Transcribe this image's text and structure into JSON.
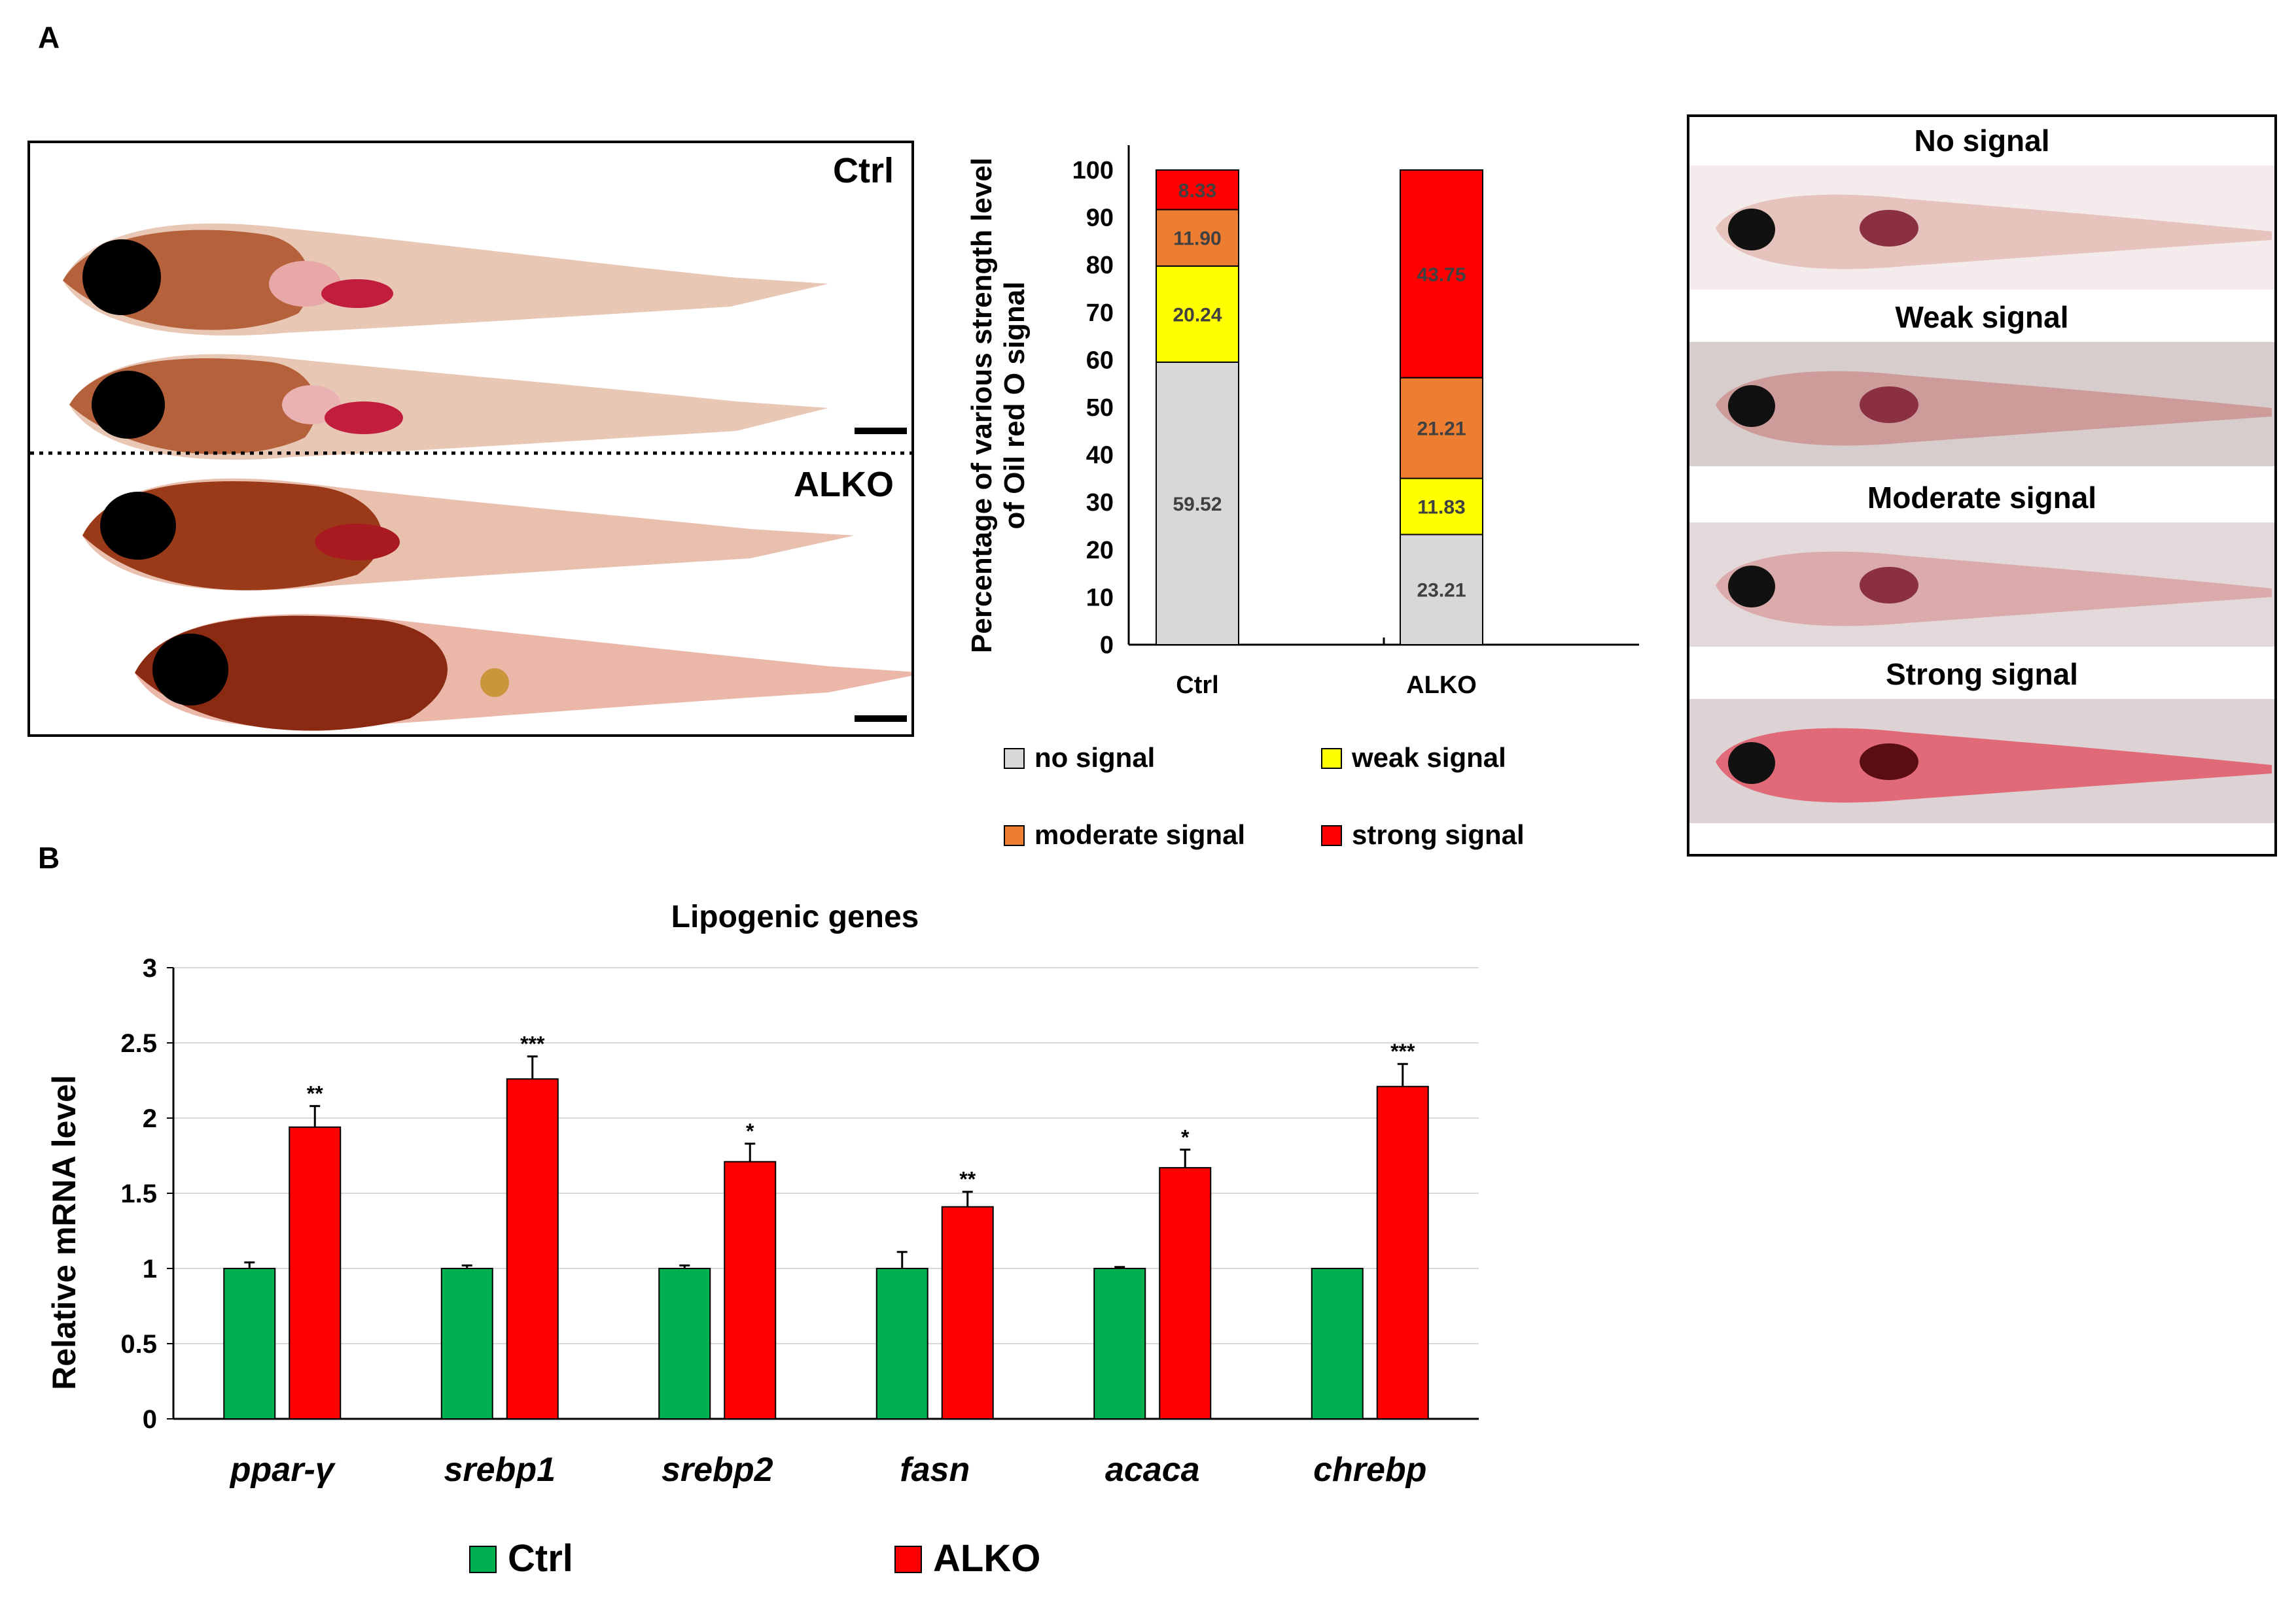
{
  "panels": {
    "a": "A",
    "b": "B"
  },
  "fish_photos": {
    "group1": "Ctrl",
    "group2": "ALKO"
  },
  "reference_images": {
    "labels": [
      "No signal",
      "Weak signal",
      "Moderate signal",
      "Strong signal"
    ]
  },
  "colors": {
    "no_signal": "#d8d8d8",
    "weak_signal": "#ffff00",
    "moderate_signal": "#ed7d31",
    "strong_signal": "#ff0000",
    "ctrl_bar": "#00b050",
    "alko_bar": "#ff0000"
  },
  "chart_data": [
    {
      "type": "bar",
      "stacked": true,
      "title": "",
      "xlabel": "",
      "ylabel": "Percentage of various strength level of Oil red O signal",
      "ylim": [
        0,
        100
      ],
      "yticks": [
        "0",
        "10",
        "20",
        "30",
        "40",
        "50",
        "60",
        "70",
        "80",
        "90",
        "100"
      ],
      "categories": [
        "Ctrl",
        "ALKO"
      ],
      "series": [
        {
          "name": "no signal",
          "values": [
            59.52,
            23.21
          ],
          "labels": [
            "59.52",
            "23.21"
          ]
        },
        {
          "name": "weak signal",
          "values": [
            20.24,
            11.83
          ],
          "labels": [
            "20.24",
            "11.83"
          ]
        },
        {
          "name": "moderate signal",
          "values": [
            11.9,
            21.21
          ],
          "labels": [
            "11.90",
            "21.21"
          ]
        },
        {
          "name": "strong signal",
          "values": [
            8.33,
            43.75
          ],
          "labels": [
            "8.33",
            "43.75"
          ]
        }
      ],
      "legend": {
        "position": "bottom",
        "entries": [
          "no signal",
          "weak signal",
          "moderate signal",
          "strong signal"
        ]
      }
    },
    {
      "type": "bar",
      "title": "Lipogenic genes",
      "xlabel": "",
      "ylabel": "Relative mRNA level",
      "ylim": [
        0,
        3
      ],
      "yticks": [
        "0",
        "0.5",
        "1",
        "1.5",
        "2",
        "2.5",
        "3"
      ],
      "grid": true,
      "categories": [
        "ppar-γ",
        "srebp1",
        "srebp2",
        "fasn",
        "acaca",
        "chrebp"
      ],
      "series": [
        {
          "name": "Ctrl",
          "values": [
            1.0,
            1.0,
            1.0,
            1.0,
            1.0,
            1.0
          ],
          "errors": [
            0.04,
            0.02,
            0.02,
            0.11,
            0.01,
            0.0
          ]
        },
        {
          "name": "ALKO",
          "values": [
            1.94,
            2.26,
            1.71,
            1.41,
            1.67,
            2.21
          ],
          "errors": [
            0.14,
            0.15,
            0.12,
            0.1,
            0.12,
            0.15
          ]
        }
      ],
      "significance": [
        "**",
        "***",
        "*",
        "**",
        "*",
        "***"
      ],
      "legend": {
        "position": "bottom",
        "entries": [
          "Ctrl",
          "ALKO"
        ]
      }
    }
  ]
}
